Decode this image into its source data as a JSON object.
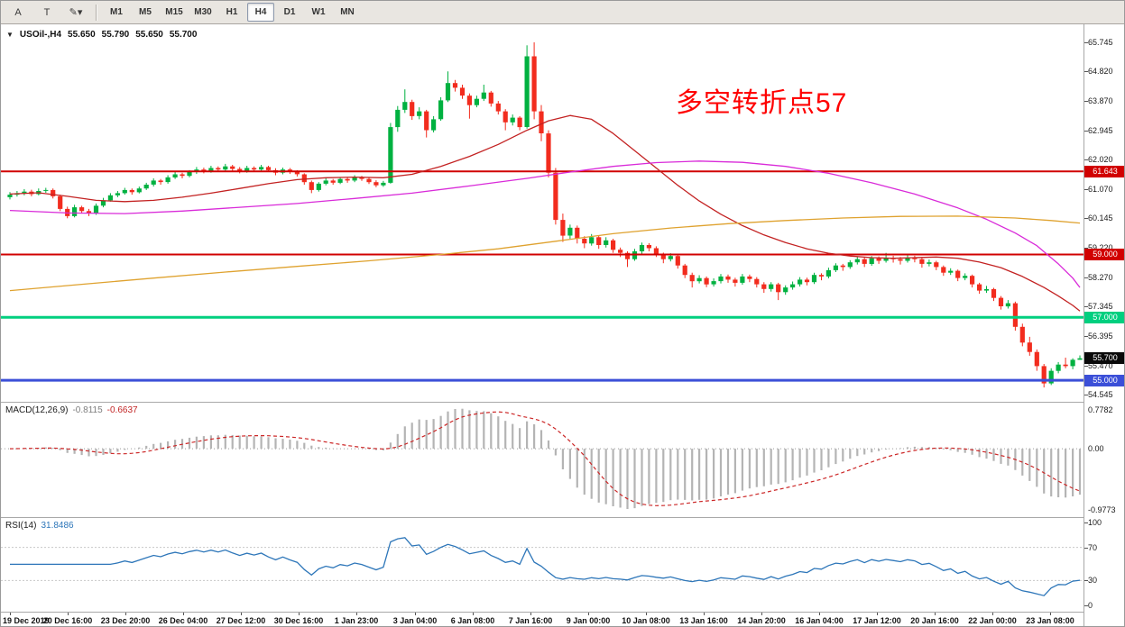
{
  "toolbar": {
    "icon_buttons": [
      {
        "name": "cursor-button",
        "label": "A"
      },
      {
        "name": "text-tool-button",
        "label": "T"
      },
      {
        "name": "draw-tools-button",
        "label": "✎▾"
      }
    ],
    "timeframes": [
      "M1",
      "M5",
      "M15",
      "M30",
      "H1",
      "H4",
      "D1",
      "W1",
      "MN"
    ],
    "active_timeframe": "H4"
  },
  "chart": {
    "symbol_label": "USOil-,H4",
    "ohlc": {
      "open": "55.650",
      "high": "55.790",
      "low": "55.650",
      "close": "55.700"
    },
    "annotation": {
      "text": "多空转折点57",
      "color": "#ff0000"
    },
    "colors": {
      "up": "#00b140",
      "down": "#f22c1e"
    },
    "price_axis_labels": [
      "65.745",
      "64.820",
      "63.870",
      "62.945",
      "62.020",
      "61.070",
      "60.145",
      "59.220",
      "58.270",
      "57.345",
      "56.395",
      "55.470",
      "54.545"
    ],
    "hlines": [
      {
        "value": 61.643,
        "label": "61.643",
        "color": "#d10000",
        "width": 2
      },
      {
        "value": 59.0,
        "label": "59.000",
        "color": "#d10000",
        "width": 2
      },
      {
        "value": 57.0,
        "label": "57.000",
        "color": "#00cf7f",
        "width": 3
      },
      {
        "value": 55.0,
        "label": "55.000",
        "color": "#3b4fd8",
        "width": 3
      }
    ],
    "current_price": {
      "value": 55.7,
      "label": "55.700",
      "badge_color": "#0a0a0a"
    },
    "candles": [
      [
        60.82,
        60.98,
        60.75,
        60.9
      ],
      [
        60.9,
        61.02,
        60.84,
        60.95
      ],
      [
        60.95,
        61.08,
        60.88,
        61.0
      ],
      [
        61.0,
        61.06,
        60.85,
        60.92
      ],
      [
        60.92,
        61.1,
        60.88,
        61.02
      ],
      [
        61.02,
        61.12,
        60.96,
        61.05
      ],
      [
        61.05,
        61.1,
        60.78,
        60.85
      ],
      [
        60.85,
        60.9,
        60.38,
        60.45
      ],
      [
        60.45,
        60.52,
        60.15,
        60.22
      ],
      [
        60.22,
        60.58,
        60.18,
        60.5
      ],
      [
        60.5,
        60.55,
        60.3,
        60.38
      ],
      [
        60.38,
        60.45,
        60.22,
        60.3
      ],
      [
        60.3,
        60.62,
        60.26,
        60.55
      ],
      [
        60.55,
        60.8,
        60.5,
        60.72
      ],
      [
        60.72,
        60.95,
        60.68,
        60.88
      ],
      [
        60.88,
        61.02,
        60.82,
        60.95
      ],
      [
        60.95,
        61.12,
        60.9,
        61.05
      ],
      [
        61.05,
        61.1,
        60.9,
        60.98
      ],
      [
        60.98,
        61.16,
        60.94,
        61.1
      ],
      [
        61.1,
        61.28,
        61.05,
        61.22
      ],
      [
        61.22,
        61.42,
        61.16,
        61.35
      ],
      [
        61.35,
        61.4,
        61.22,
        61.3
      ],
      [
        61.3,
        61.52,
        61.25,
        61.45
      ],
      [
        61.45,
        61.62,
        61.4,
        61.55
      ],
      [
        61.55,
        61.6,
        61.42,
        61.5
      ],
      [
        61.5,
        61.68,
        61.45,
        61.62
      ],
      [
        61.62,
        61.78,
        61.56,
        61.7
      ],
      [
        61.7,
        61.76,
        61.58,
        61.65
      ],
      [
        61.65,
        61.82,
        61.6,
        61.75
      ],
      [
        61.75,
        61.8,
        61.62,
        61.7
      ],
      [
        61.7,
        61.88,
        61.65,
        61.8
      ],
      [
        61.8,
        61.85,
        61.66,
        61.72
      ],
      [
        61.72,
        61.78,
        61.58,
        61.65
      ],
      [
        61.65,
        61.82,
        61.6,
        61.75
      ],
      [
        61.75,
        61.8,
        61.62,
        61.7
      ],
      [
        61.7,
        61.85,
        61.64,
        61.78
      ],
      [
        61.78,
        61.82,
        61.62,
        61.68
      ],
      [
        61.68,
        61.74,
        61.52,
        61.6
      ],
      [
        61.6,
        61.76,
        61.55,
        61.7
      ],
      [
        61.7,
        61.75,
        61.56,
        61.62
      ],
      [
        61.62,
        61.68,
        61.48,
        61.55
      ],
      [
        61.55,
        61.58,
        61.22,
        61.3
      ],
      [
        61.3,
        61.35,
        60.95,
        61.05
      ],
      [
        61.05,
        61.3,
        61.0,
        61.25
      ],
      [
        61.25,
        61.42,
        61.2,
        61.35
      ],
      [
        61.35,
        61.4,
        61.22,
        61.28
      ],
      [
        61.28,
        61.46,
        61.24,
        61.4
      ],
      [
        61.4,
        61.45,
        61.28,
        61.35
      ],
      [
        61.35,
        61.52,
        61.3,
        61.45
      ],
      [
        61.45,
        61.5,
        61.34,
        61.4
      ],
      [
        61.4,
        61.45,
        61.24,
        61.3
      ],
      [
        61.3,
        61.36,
        61.14,
        61.2
      ],
      [
        61.2,
        61.34,
        61.15,
        61.28
      ],
      [
        61.28,
        63.18,
        61.25,
        63.05
      ],
      [
        63.05,
        63.72,
        62.9,
        63.6
      ],
      [
        63.6,
        64.25,
        63.5,
        63.85
      ],
      [
        63.85,
        63.92,
        63.28,
        63.4
      ],
      [
        63.4,
        63.68,
        63.3,
        63.55
      ],
      [
        63.55,
        63.6,
        62.72,
        62.95
      ],
      [
        62.95,
        63.4,
        62.88,
        63.3
      ],
      [
        63.3,
        64.0,
        63.25,
        63.9
      ],
      [
        63.9,
        64.82,
        63.85,
        64.45
      ],
      [
        64.45,
        64.55,
        64.18,
        64.3
      ],
      [
        64.3,
        64.4,
        63.95,
        64.05
      ],
      [
        64.05,
        64.12,
        63.32,
        63.75
      ],
      [
        63.75,
        64.05,
        63.68,
        63.95
      ],
      [
        63.95,
        64.4,
        63.88,
        64.15
      ],
      [
        64.15,
        64.2,
        63.7,
        63.8
      ],
      [
        63.8,
        63.88,
        63.45,
        63.55
      ],
      [
        63.55,
        63.62,
        62.95,
        63.2
      ],
      [
        63.2,
        63.45,
        63.1,
        63.35
      ],
      [
        63.35,
        63.4,
        62.95,
        63.05
      ],
      [
        63.05,
        65.65,
        63.0,
        65.3
      ],
      [
        65.3,
        65.745,
        63.3,
        63.55
      ],
      [
        63.55,
        63.75,
        62.6,
        62.85
      ],
      [
        62.85,
        62.95,
        61.45,
        61.6
      ],
      [
        61.6,
        61.75,
        59.95,
        60.1
      ],
      [
        60.1,
        60.3,
        59.4,
        59.6
      ],
      [
        59.6,
        59.95,
        59.5,
        59.85
      ],
      [
        59.85,
        59.92,
        59.35,
        59.5
      ],
      [
        59.5,
        59.58,
        59.2,
        59.35
      ],
      [
        59.35,
        59.65,
        59.28,
        59.55
      ],
      [
        59.55,
        59.6,
        59.18,
        59.3
      ],
      [
        59.3,
        59.55,
        59.22,
        59.45
      ],
      [
        59.45,
        59.5,
        59.05,
        59.15
      ],
      [
        59.15,
        59.22,
        58.92,
        59.05
      ],
      [
        59.05,
        59.1,
        58.6,
        58.85
      ],
      [
        58.85,
        59.18,
        58.8,
        59.1
      ],
      [
        59.1,
        59.38,
        59.02,
        59.3
      ],
      [
        59.3,
        59.36,
        59.1,
        59.2
      ],
      [
        59.2,
        59.26,
        58.92,
        59.0
      ],
      [
        59.0,
        59.06,
        58.72,
        58.85
      ],
      [
        58.85,
        59.04,
        58.78,
        58.95
      ],
      [
        58.95,
        59.0,
        58.55,
        58.65
      ],
      [
        58.65,
        58.7,
        58.25,
        58.35
      ],
      [
        58.35,
        58.42,
        57.95,
        58.15
      ],
      [
        58.15,
        58.34,
        58.08,
        58.25
      ],
      [
        58.25,
        58.3,
        57.96,
        58.05
      ],
      [
        58.05,
        58.24,
        57.98,
        58.15
      ],
      [
        58.15,
        58.38,
        58.08,
        58.3
      ],
      [
        58.3,
        58.36,
        58.1,
        58.2
      ],
      [
        58.2,
        58.26,
        57.98,
        58.1
      ],
      [
        58.1,
        58.38,
        58.04,
        58.3
      ],
      [
        58.3,
        58.36,
        58.12,
        58.22
      ],
      [
        58.22,
        58.28,
        57.95,
        58.05
      ],
      [
        58.05,
        58.12,
        57.78,
        57.9
      ],
      [
        57.9,
        58.12,
        57.82,
        58.05
      ],
      [
        58.05,
        58.1,
        57.55,
        57.8
      ],
      [
        57.8,
        58.02,
        57.72,
        57.95
      ],
      [
        57.95,
        58.14,
        57.88,
        58.05
      ],
      [
        58.05,
        58.28,
        57.98,
        58.2
      ],
      [
        58.2,
        58.26,
        58.02,
        58.12
      ],
      [
        58.12,
        58.42,
        58.06,
        58.35
      ],
      [
        58.35,
        58.4,
        58.18,
        58.3
      ],
      [
        58.3,
        58.58,
        58.24,
        58.5
      ],
      [
        58.5,
        58.72,
        58.44,
        58.65
      ],
      [
        58.65,
        58.7,
        58.48,
        58.6
      ],
      [
        58.6,
        58.82,
        58.54,
        58.75
      ],
      [
        58.75,
        58.94,
        58.68,
        58.85
      ],
      [
        58.85,
        58.9,
        58.6,
        58.7
      ],
      [
        58.7,
        58.95,
        58.64,
        58.88
      ],
      [
        58.88,
        58.94,
        58.7,
        58.8
      ],
      [
        58.8,
        59.05,
        58.74,
        58.9
      ],
      [
        58.9,
        58.96,
        58.74,
        58.85
      ],
      [
        58.85,
        58.92,
        58.68,
        58.8
      ],
      [
        58.8,
        58.98,
        58.74,
        58.9
      ],
      [
        58.9,
        58.96,
        58.75,
        58.85
      ],
      [
        58.85,
        58.9,
        58.58,
        58.7
      ],
      [
        58.7,
        58.84,
        58.62,
        58.75
      ],
      [
        58.75,
        58.8,
        58.5,
        58.6
      ],
      [
        58.6,
        58.65,
        58.32,
        58.42
      ],
      [
        58.42,
        58.56,
        58.35,
        58.48
      ],
      [
        58.48,
        58.52,
        58.15,
        58.25
      ],
      [
        58.25,
        58.4,
        58.18,
        58.32
      ],
      [
        58.32,
        58.36,
        57.95,
        58.05
      ],
      [
        58.05,
        58.1,
        57.75,
        57.85
      ],
      [
        57.85,
        58.0,
        57.78,
        57.9
      ],
      [
        57.9,
        57.94,
        57.52,
        57.62
      ],
      [
        57.62,
        57.68,
        57.25,
        57.35
      ],
      [
        57.35,
        57.55,
        57.28,
        57.45
      ],
      [
        57.45,
        57.5,
        56.58,
        56.7
      ],
      [
        56.7,
        56.8,
        56.08,
        56.2
      ],
      [
        56.2,
        56.38,
        55.78,
        55.9
      ],
      [
        55.9,
        55.98,
        55.3,
        55.45
      ],
      [
        55.45,
        55.52,
        54.77,
        54.9
      ],
      [
        54.9,
        55.38,
        54.85,
        55.3
      ],
      [
        55.3,
        55.58,
        55.22,
        55.5
      ],
      [
        55.5,
        55.72,
        55.38,
        55.45
      ],
      [
        55.45,
        55.7,
        55.35,
        55.65
      ],
      [
        55.65,
        55.79,
        55.65,
        55.7
      ]
    ],
    "ma_lines": [
      {
        "name": "ma-line-red",
        "color": "#c32222",
        "points": [
          [
            0,
            60.92
          ],
          [
            4,
            60.96
          ],
          [
            8,
            60.85
          ],
          [
            12,
            60.72
          ],
          [
            16,
            60.68
          ],
          [
            20,
            60.72
          ],
          [
            24,
            60.82
          ],
          [
            28,
            60.95
          ],
          [
            32,
            61.1
          ],
          [
            36,
            61.25
          ],
          [
            40,
            61.38
          ],
          [
            44,
            61.44
          ],
          [
            48,
            61.46
          ],
          [
            52,
            61.44
          ],
          [
            56,
            61.55
          ],
          [
            60,
            61.8
          ],
          [
            64,
            62.12
          ],
          [
            68,
            62.5
          ],
          [
            72,
            62.95
          ],
          [
            75,
            63.25
          ],
          [
            78,
            63.42
          ],
          [
            81,
            63.3
          ],
          [
            84,
            62.85
          ],
          [
            87,
            62.3
          ],
          [
            90,
            61.75
          ],
          [
            93,
            61.2
          ],
          [
            96,
            60.7
          ],
          [
            99,
            60.28
          ],
          [
            102,
            59.92
          ],
          [
            105,
            59.62
          ],
          [
            108,
            59.38
          ],
          [
            111,
            59.18
          ],
          [
            114,
            59.04
          ],
          [
            117,
            58.95
          ],
          [
            120,
            58.9
          ],
          [
            123,
            58.88
          ],
          [
            126,
            58.9
          ],
          [
            129,
            58.92
          ],
          [
            132,
            58.88
          ],
          [
            135,
            58.76
          ],
          [
            138,
            58.58
          ],
          [
            141,
            58.3
          ],
          [
            144,
            57.95
          ],
          [
            146,
            57.68
          ],
          [
            148,
            57.38
          ],
          [
            149,
            57.2
          ]
        ]
      },
      {
        "name": "ma-line-magenta",
        "color": "#d92bd9",
        "points": [
          [
            0,
            60.4
          ],
          [
            8,
            60.32
          ],
          [
            16,
            60.3
          ],
          [
            24,
            60.38
          ],
          [
            32,
            60.5
          ],
          [
            40,
            60.62
          ],
          [
            48,
            60.78
          ],
          [
            56,
            60.95
          ],
          [
            64,
            61.18
          ],
          [
            72,
            61.42
          ],
          [
            78,
            61.62
          ],
          [
            84,
            61.8
          ],
          [
            90,
            61.92
          ],
          [
            96,
            61.97
          ],
          [
            102,
            61.93
          ],
          [
            108,
            61.8
          ],
          [
            114,
            61.58
          ],
          [
            120,
            61.28
          ],
          [
            126,
            60.92
          ],
          [
            132,
            60.48
          ],
          [
            136,
            60.12
          ],
          [
            140,
            59.68
          ],
          [
            143,
            59.28
          ],
          [
            146,
            58.7
          ],
          [
            148,
            58.25
          ],
          [
            149,
            57.95
          ]
        ]
      },
      {
        "name": "ma-line-orange",
        "color": "#dfa22f",
        "points": [
          [
            0,
            57.85
          ],
          [
            10,
            58.05
          ],
          [
            20,
            58.25
          ],
          [
            30,
            58.44
          ],
          [
            40,
            58.62
          ],
          [
            50,
            58.8
          ],
          [
            60,
            59.0
          ],
          [
            68,
            59.18
          ],
          [
            76,
            59.42
          ],
          [
            84,
            59.66
          ],
          [
            92,
            59.84
          ],
          [
            100,
            59.98
          ],
          [
            108,
            60.08
          ],
          [
            116,
            60.16
          ],
          [
            124,
            60.21
          ],
          [
            132,
            60.22
          ],
          [
            140,
            60.16
          ],
          [
            145,
            60.08
          ],
          [
            149,
            60.0
          ]
        ]
      }
    ],
    "time_labels": [
      "19 Dec 2019",
      "20 Dec 16:00",
      "23 Dec 20:00",
      "26 Dec 04:00",
      "27 Dec 12:00",
      "30 Dec 16:00",
      "1 Jan 23:00",
      "3 Jan 04:00",
      "6 Jan 08:00",
      "7 Jan 16:00",
      "9 Jan 00:00",
      "10 Jan 08:00",
      "13 Jan 16:00",
      "14 Jan 20:00",
      "16 Jan 04:00",
      "17 Jan 12:00",
      "20 Jan 16:00",
      "22 Jan 00:00",
      "23 Jan 08:00"
    ],
    "macd": {
      "title": "MACD(12,26,9)",
      "value_main": "-0.8115",
      "value_signal": "-0.6637",
      "axis_labels": [
        "0.7782",
        "0.00",
        "-0.9773"
      ],
      "histogram_color": "#b4b4b4",
      "signal_color": "#cc2727"
    },
    "rsi": {
      "title": "RSI(14)",
      "value": "31.8486",
      "axis_labels": [
        "100",
        "70",
        "30",
        "0"
      ],
      "levels": [
        70,
        30
      ],
      "line_color": "#2d76b9"
    }
  }
}
